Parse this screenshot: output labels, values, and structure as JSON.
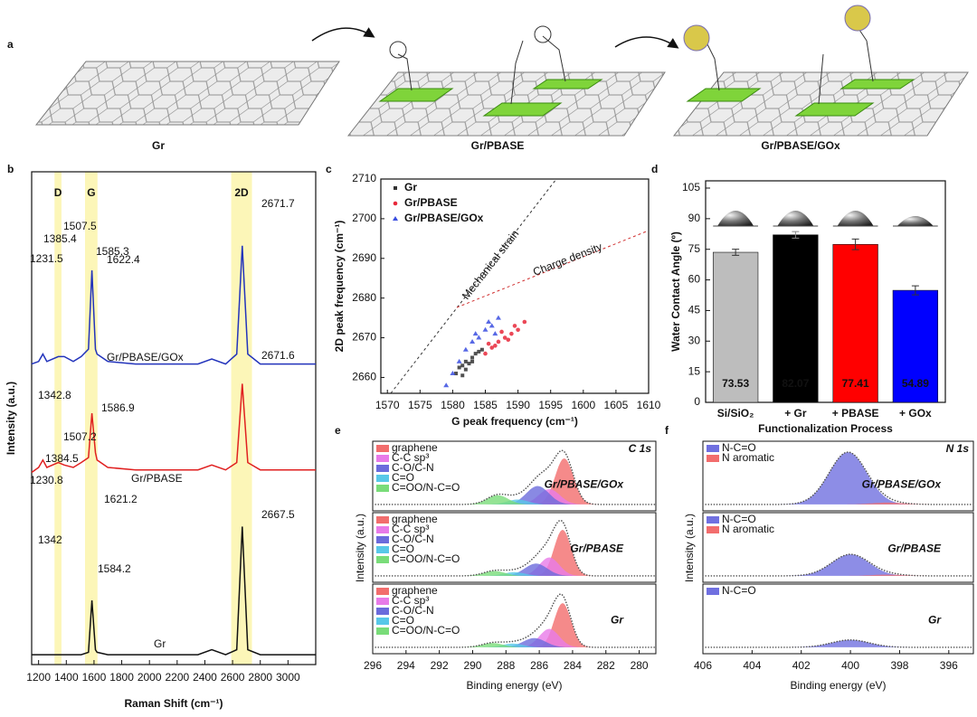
{
  "figure_a": {
    "label": "a",
    "captions": [
      {
        "text": "Gr",
        "color": "#111111"
      },
      {
        "text": "Gr/PBASE",
        "color": "#e02020"
      },
      {
        "text": "Gr/PBASE/GOx",
        "color": "#2233bb"
      }
    ]
  },
  "chart_data": [
    {
      "label": "b",
      "type": "line",
      "xlabel": "Raman Shift (cm⁻¹)",
      "ylabel": "Intensity (a.u.)",
      "xlim": [
        1150,
        3200
      ],
      "xticks": [
        1200,
        1400,
        1600,
        1800,
        2000,
        2200,
        2400,
        2600,
        2800,
        3000
      ],
      "ylim": [
        0,
        100
      ],
      "bands": [
        {
          "label": "D",
          "from": 1315,
          "to": 1365
        },
        {
          "label": "G",
          "from": 1535,
          "to": 1625
        },
        {
          "label": "2D",
          "from": 2590,
          "to": 2740
        }
      ],
      "x": [
        1150,
        1200,
        1231,
        1260,
        1342,
        1385,
        1450,
        1507,
        1560,
        1585,
        1610,
        1622,
        1700,
        1900,
        2100,
        2350,
        2450,
        2550,
        2630,
        2670,
        2710,
        2800,
        3200
      ],
      "series": [
        {
          "name": "Gr",
          "color": "#111111",
          "values": [
            2,
            2,
            2,
            2,
            2,
            2,
            2,
            2,
            2.5,
            13,
            3,
            2.5,
            2,
            2,
            2,
            2,
            3,
            2,
            3,
            28,
            3,
            2,
            2
          ]
        },
        {
          "name": "Gr/PBASE",
          "color": "#e02020",
          "values": [
            39,
            40,
            41.5,
            40,
            41,
            40.5,
            40,
            41,
            42,
            51,
            43,
            41.5,
            40,
            39.5,
            39.5,
            39.5,
            40.5,
            39.5,
            41,
            57,
            41,
            39.5,
            39.5
          ]
        },
        {
          "name": "Gr/PBASE/GOx",
          "color": "#2233bb",
          "values": [
            61,
            61.5,
            63,
            61.5,
            62.5,
            62.5,
            61.5,
            62.5,
            64,
            80,
            64,
            63,
            61.5,
            61,
            61,
            61,
            62,
            61,
            63,
            85,
            63,
            61,
            61
          ]
        }
      ],
      "annotations": [
        "1585.3",
        "1507.5",
        "1385.4",
        "1231.5",
        "1622.4",
        "2671.7",
        "1342.8",
        "1586.9",
        "1507.2",
        "1384.5",
        "1230.8",
        "1621.2",
        "2671.6",
        "1342",
        "2667.5",
        "1584.2"
      ]
    },
    {
      "label": "c",
      "type": "scatter",
      "xlabel": "G peak frequency (cm⁻¹)",
      "ylabel": "2D peak frequency (cm⁻¹)",
      "xlim": [
        1569,
        1610
      ],
      "xticks": [
        1570,
        1575,
        1580,
        1585,
        1590,
        1595,
        1600,
        1605,
        1610
      ],
      "ylim": [
        2656,
        2710
      ],
      "yticks": [
        2660,
        2670,
        2680,
        2690,
        2700,
        2710
      ],
      "annotations": [
        "Mechanical strain",
        "Charge density"
      ],
      "series": [
        {
          "name": "Gr",
          "color": "#333333",
          "marker": "square",
          "x": [
            1580.5,
            1581,
            1581.5,
            1582,
            1582.5,
            1583,
            1583.5,
            1584,
            1582,
            1583,
            1581.5,
            1584.5
          ],
          "values": [
            2661,
            2662.5,
            2663,
            2664,
            2663.5,
            2665,
            2666,
            2666.5,
            2662,
            2664,
            2660.5,
            2667
          ]
        },
        {
          "name": "Gr/PBASE",
          "color": "#e8283a",
          "marker": "circle",
          "x": [
            1585,
            1586,
            1587,
            1588,
            1589,
            1590,
            1586.5,
            1588.5,
            1587.5,
            1589.5,
            1591,
            1585.5
          ],
          "values": [
            2666,
            2667.5,
            2669,
            2670,
            2671,
            2672,
            2668,
            2669.5,
            2671.5,
            2673,
            2674,
            2668.5
          ]
        },
        {
          "name": "Gr/PBASE/GOx",
          "color": "#3a4ee0",
          "marker": "triangle",
          "x": [
            1579,
            1580,
            1581,
            1582,
            1583,
            1584,
            1585,
            1586,
            1587,
            1583.5,
            1585.5,
            1586.5
          ],
          "values": [
            2658,
            2661,
            2664,
            2667,
            2669,
            2670,
            2672,
            2673,
            2675,
            2671,
            2674,
            2671
          ]
        }
      ]
    },
    {
      "label": "d",
      "type": "bar",
      "xlabel": "Functionalization Process",
      "ylabel": "Water Contact Angle (º)",
      "categories": [
        "Si/SiO₂",
        "+ Gr",
        "+ PBASE",
        "+ GOx"
      ],
      "values": [
        73.53,
        82.07,
        77.41,
        54.89
      ],
      "errors": [
        1.5,
        1.6,
        2.6,
        2.2
      ],
      "colors": [
        "#bdbdbd",
        "#000000",
        "#ff0000",
        "#0000ff"
      ],
      "ylim": [
        0,
        105
      ],
      "yticks": [
        0,
        15,
        30,
        45,
        60,
        75,
        90,
        105
      ]
    },
    {
      "label": "e",
      "type": "xps",
      "title": "C 1s",
      "xlabel": "Binding energy (eV)",
      "ylabel": "Intensity (a.u.)",
      "xlim": [
        296,
        279
      ],
      "xticks": [
        296,
        294,
        292,
        290,
        288,
        286,
        284,
        282,
        280
      ],
      "ylim": [
        0,
        1
      ],
      "panels": [
        {
          "sample": "Gr/PBASE/GOx",
          "color": "#2233bb",
          "peaks": [
            {
              "name": "graphene",
              "color": "#f26d6d",
              "center": 284.5,
              "height": 0.75,
              "fwhm": 1.3
            },
            {
              "name": "C-C sp³",
              "color": "#e87ae8",
              "center": 285.4,
              "height": 0.25,
              "fwhm": 1.5
            },
            {
              "name": "C-O/C-N",
              "color": "#6b6bdc",
              "center": 286.1,
              "height": 0.3,
              "fwhm": 1.6
            },
            {
              "name": "C=O",
              "color": "#58c8e8",
              "center": 287.3,
              "height": 0.08,
              "fwhm": 1.5
            },
            {
              "name": "C=OO/N-C=O",
              "color": "#79dc79",
              "center": 288.5,
              "height": 0.15,
              "fwhm": 1.5
            }
          ]
        },
        {
          "sample": "Gr/PBASE",
          "color": "#e02020",
          "peaks": [
            {
              "name": "graphene",
              "color": "#f26d6d",
              "center": 284.6,
              "height": 0.75,
              "fwhm": 1.2
            },
            {
              "name": "C-C sp³",
              "color": "#e87ae8",
              "center": 285.4,
              "height": 0.3,
              "fwhm": 1.4
            },
            {
              "name": "C-O/C-N",
              "color": "#6b6bdc",
              "center": 286.2,
              "height": 0.2,
              "fwhm": 1.6
            },
            {
              "name": "C=O",
              "color": "#58c8e8",
              "center": 287.5,
              "height": 0.06,
              "fwhm": 1.5
            },
            {
              "name": "C=OO/N-C=O",
              "color": "#79dc79",
              "center": 288.7,
              "height": 0.08,
              "fwhm": 1.5
            }
          ]
        },
        {
          "sample": "Gr",
          "color": "#111111",
          "peaks": [
            {
              "name": "graphene",
              "color": "#f26d6d",
              "center": 284.6,
              "height": 0.72,
              "fwhm": 1.2
            },
            {
              "name": "C-C sp³",
              "color": "#e87ae8",
              "center": 285.4,
              "height": 0.3,
              "fwhm": 1.4
            },
            {
              "name": "C-O/C-N",
              "color": "#6b6bdc",
              "center": 286.3,
              "height": 0.15,
              "fwhm": 1.6
            },
            {
              "name": "C=O",
              "color": "#58c8e8",
              "center": 287.6,
              "height": 0.06,
              "fwhm": 1.5
            },
            {
              "name": "C=OO/N-C=O",
              "color": "#79dc79",
              "center": 288.8,
              "height": 0.07,
              "fwhm": 1.5
            }
          ]
        }
      ]
    },
    {
      "label": "f",
      "type": "xps",
      "title": "N 1s",
      "xlabel": "Binding energy (eV)",
      "ylabel": "Intensity (a.u.)",
      "xlim": [
        406,
        395
      ],
      "xticks": [
        406,
        404,
        402,
        400,
        398,
        396
      ],
      "ylim": [
        0,
        1
      ],
      "panels": [
        {
          "sample": "Gr/PBASE/GOx",
          "color": "#2233bb",
          "peaks": [
            {
              "name": "N-C=O",
              "color": "#7070e0",
              "center": 400.1,
              "height": 0.85,
              "fwhm": 1.8
            },
            {
              "name": "N aromatic",
              "color": "#f26d6d",
              "center": 398.5,
              "height": 0.03,
              "fwhm": 1.5
            }
          ]
        },
        {
          "sample": "Gr/PBASE",
          "color": "#e02020",
          "peaks": [
            {
              "name": "N-C=O",
              "color": "#7070e0",
              "center": 400,
              "height": 0.35,
              "fwhm": 1.8
            },
            {
              "name": "N aromatic",
              "color": "#f26d6d",
              "center": 398.5,
              "height": 0.02,
              "fwhm": 1.5
            }
          ]
        },
        {
          "sample": "Gr",
          "color": "#111111",
          "peaks": [
            {
              "name": "N-C=O",
              "color": "#7070e0",
              "center": 400,
              "height": 0.12,
              "fwhm": 1.8
            }
          ]
        }
      ]
    }
  ]
}
